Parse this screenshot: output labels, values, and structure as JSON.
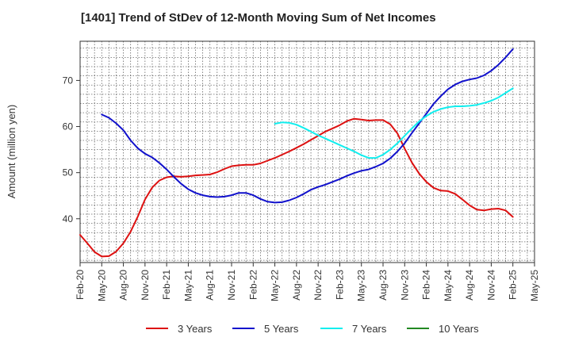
{
  "chart_data": {
    "type": "line",
    "title": "[1401]  Trend of StDev of 12-Month Moving Sum of Net Incomes",
    "ylabel": "Amount (million yen)",
    "xlabel": "",
    "ylim": [
      30.5,
      78.5
    ],
    "yticks": [
      40,
      50,
      60,
      70
    ],
    "xtick_labels": [
      "Feb-20",
      "May-20",
      "Aug-20",
      "Nov-20",
      "Feb-21",
      "May-21",
      "Aug-21",
      "Nov-21",
      "Feb-22",
      "May-22",
      "Aug-22",
      "Nov-22",
      "Feb-23",
      "May-23",
      "Aug-23",
      "Nov-23",
      "Feb-24",
      "May-24",
      "Aug-24",
      "Nov-24",
      "Feb-25",
      "May-25"
    ],
    "x_start": "2020-02",
    "x_end": "2025-05",
    "grid": true,
    "legend_position": "bottom",
    "series": [
      {
        "name": "3 Years",
        "color": "#dd1111",
        "start": "2020-02",
        "values": [
          36.5,
          34.7,
          32.8,
          31.8,
          31.9,
          32.9,
          34.7,
          37.2,
          40.5,
          44.2,
          46.8,
          48.3,
          49.0,
          49.2,
          49.1,
          49.2,
          49.4,
          49.5,
          49.6,
          50.1,
          50.8,
          51.4,
          51.6,
          51.7,
          51.7,
          52.0,
          52.6,
          53.2,
          53.9,
          54.6,
          55.4,
          56.2,
          57.1,
          58.0,
          58.9,
          59.6,
          60.3,
          61.2,
          61.7,
          61.5,
          61.3,
          61.4,
          61.4,
          60.5,
          58.5,
          55.2,
          52.2,
          49.8,
          48.0,
          46.7,
          46.1,
          46.0,
          45.4,
          44.2,
          42.9,
          42.0,
          41.8,
          42.1,
          42.2,
          41.8,
          40.4
        ]
      },
      {
        "name": "5 Years",
        "color": "#1111cc",
        "start": "2020-02",
        "values": [
          null,
          null,
          null,
          62.6,
          61.9,
          60.7,
          59.2,
          57.0,
          55.3,
          54.1,
          53.3,
          52.1,
          50.7,
          49.1,
          47.6,
          46.4,
          45.6,
          45.1,
          44.8,
          44.7,
          44.8,
          45.1,
          45.6,
          45.6,
          45.1,
          44.3,
          43.7,
          43.5,
          43.6,
          44.0,
          44.6,
          45.4,
          46.3,
          46.9,
          47.4,
          48.0,
          48.6,
          49.3,
          49.9,
          50.4,
          50.7,
          51.3,
          52.0,
          53.1,
          54.6,
          56.4,
          58.6,
          60.7,
          62.8,
          64.9,
          66.6,
          68.1,
          69.1,
          69.8,
          70.2,
          70.5,
          71.1,
          72.1,
          73.4,
          75.0,
          76.8
        ]
      },
      {
        "name": "7 Years",
        "color": "#11eeee",
        "start": "2020-02",
        "values": [
          null,
          null,
          null,
          null,
          null,
          null,
          null,
          null,
          null,
          null,
          null,
          null,
          null,
          null,
          null,
          null,
          null,
          null,
          null,
          null,
          null,
          null,
          null,
          null,
          null,
          null,
          null,
          60.6,
          60.9,
          60.8,
          60.4,
          59.7,
          58.9,
          58.1,
          57.4,
          56.7,
          56.0,
          55.3,
          54.6,
          53.8,
          53.2,
          53.2,
          53.9,
          55.0,
          56.4,
          58.0,
          59.6,
          61.1,
          62.3,
          63.2,
          63.8,
          64.2,
          64.4,
          64.4,
          64.5,
          64.7,
          65.1,
          65.6,
          66.3,
          67.3,
          68.3
        ]
      },
      {
        "name": "10 Years",
        "color": "#228822",
        "start": "2020-02",
        "values": []
      }
    ]
  }
}
